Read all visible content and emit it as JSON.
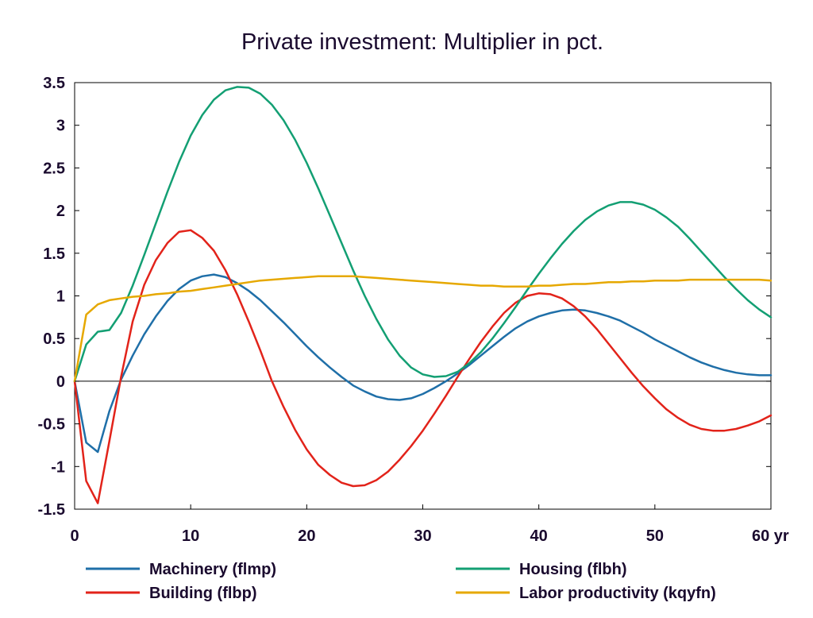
{
  "chart_data": {
    "type": "line",
    "title": "Private investment: Multiplier in pct.",
    "xlabel": "",
    "ylabel": "",
    "x_unit_label": "yr",
    "xlim": [
      0,
      60
    ],
    "ylim": [
      -1.5,
      3.5
    ],
    "x_ticks": [
      0,
      10,
      20,
      30,
      40,
      50,
      60
    ],
    "x_tick_labels": [
      "0",
      "10",
      "20",
      "30",
      "40",
      "50",
      "60 yr"
    ],
    "y_ticks": [
      3.5,
      3,
      2.5,
      2,
      1.5,
      1,
      0.5,
      0,
      -0.5,
      -1,
      -1.5
    ],
    "y_tick_labels": [
      "3.5",
      "3",
      "2.5",
      "2",
      "1.5",
      "1",
      "0.5",
      "0",
      "-0.5",
      "-1",
      "-1.5"
    ],
    "grid": false,
    "legend_position": "bottom",
    "series": [
      {
        "name": "Machinery (flmp)",
        "color": "#1f6fa8",
        "points": [
          [
            0,
            0
          ],
          [
            1,
            -0.72
          ],
          [
            2,
            -0.83
          ],
          [
            3,
            -0.35
          ],
          [
            4,
            0.02
          ],
          [
            5,
            0.3
          ],
          [
            6,
            0.55
          ],
          [
            7,
            0.76
          ],
          [
            8,
            0.94
          ],
          [
            9,
            1.08
          ],
          [
            10,
            1.18
          ],
          [
            11,
            1.23
          ],
          [
            12,
            1.25
          ],
          [
            13,
            1.22
          ],
          [
            14,
            1.15
          ],
          [
            15,
            1.06
          ],
          [
            16,
            0.95
          ],
          [
            17,
            0.82
          ],
          [
            18,
            0.69
          ],
          [
            19,
            0.55
          ],
          [
            20,
            0.41
          ],
          [
            21,
            0.28
          ],
          [
            22,
            0.16
          ],
          [
            23,
            0.05
          ],
          [
            24,
            -0.05
          ],
          [
            25,
            -0.12
          ],
          [
            26,
            -0.18
          ],
          [
            27,
            -0.21
          ],
          [
            28,
            -0.22
          ],
          [
            29,
            -0.2
          ],
          [
            30,
            -0.15
          ],
          [
            31,
            -0.08
          ],
          [
            32,
            0.0
          ],
          [
            33,
            0.09
          ],
          [
            34,
            0.19
          ],
          [
            35,
            0.3
          ],
          [
            36,
            0.41
          ],
          [
            37,
            0.52
          ],
          [
            38,
            0.62
          ],
          [
            39,
            0.7
          ],
          [
            40,
            0.76
          ],
          [
            41,
            0.8
          ],
          [
            42,
            0.83
          ],
          [
            43,
            0.84
          ],
          [
            44,
            0.83
          ],
          [
            45,
            0.8
          ],
          [
            46,
            0.76
          ],
          [
            47,
            0.71
          ],
          [
            48,
            0.64
          ],
          [
            49,
            0.57
          ],
          [
            50,
            0.49
          ],
          [
            51,
            0.42
          ],
          [
            52,
            0.35
          ],
          [
            53,
            0.28
          ],
          [
            54,
            0.22
          ],
          [
            55,
            0.17
          ],
          [
            56,
            0.13
          ],
          [
            57,
            0.1
          ],
          [
            58,
            0.08
          ],
          [
            59,
            0.07
          ],
          [
            60,
            0.07
          ]
        ]
      },
      {
        "name": "Building (flbp)",
        "color": "#e2231a",
        "points": [
          [
            0,
            0
          ],
          [
            1,
            -1.17
          ],
          [
            2,
            -1.43
          ],
          [
            3,
            -0.7
          ],
          [
            4,
            0.05
          ],
          [
            5,
            0.7
          ],
          [
            6,
            1.13
          ],
          [
            7,
            1.42
          ],
          [
            8,
            1.62
          ],
          [
            9,
            1.75
          ],
          [
            10,
            1.77
          ],
          [
            11,
            1.68
          ],
          [
            12,
            1.53
          ],
          [
            13,
            1.3
          ],
          [
            14,
            1.02
          ],
          [
            15,
            0.7
          ],
          [
            16,
            0.36
          ],
          [
            17,
            0.0
          ],
          [
            18,
            -0.3
          ],
          [
            19,
            -0.57
          ],
          [
            20,
            -0.8
          ],
          [
            21,
            -0.98
          ],
          [
            22,
            -1.1
          ],
          [
            23,
            -1.19
          ],
          [
            24,
            -1.23
          ],
          [
            25,
            -1.22
          ],
          [
            26,
            -1.16
          ],
          [
            27,
            -1.06
          ],
          [
            28,
            -0.92
          ],
          [
            29,
            -0.76
          ],
          [
            30,
            -0.58
          ],
          [
            31,
            -0.38
          ],
          [
            32,
            -0.17
          ],
          [
            33,
            0.05
          ],
          [
            34,
            0.26
          ],
          [
            35,
            0.46
          ],
          [
            36,
            0.64
          ],
          [
            37,
            0.8
          ],
          [
            38,
            0.92
          ],
          [
            39,
            1.0
          ],
          [
            40,
            1.03
          ],
          [
            41,
            1.02
          ],
          [
            42,
            0.97
          ],
          [
            43,
            0.88
          ],
          [
            44,
            0.76
          ],
          [
            45,
            0.61
          ],
          [
            46,
            0.44
          ],
          [
            47,
            0.27
          ],
          [
            48,
            0.1
          ],
          [
            49,
            -0.06
          ],
          [
            50,
            -0.2
          ],
          [
            51,
            -0.33
          ],
          [
            52,
            -0.43
          ],
          [
            53,
            -0.51
          ],
          [
            54,
            -0.56
          ],
          [
            55,
            -0.58
          ],
          [
            56,
            -0.58
          ],
          [
            57,
            -0.56
          ],
          [
            58,
            -0.52
          ],
          [
            59,
            -0.47
          ],
          [
            60,
            -0.4
          ]
        ]
      },
      {
        "name": "Housing (flbh)",
        "color": "#139f73",
        "points": [
          [
            0,
            0
          ],
          [
            1,
            0.43
          ],
          [
            2,
            0.58
          ],
          [
            3,
            0.6
          ],
          [
            4,
            0.8
          ],
          [
            5,
            1.12
          ],
          [
            6,
            1.48
          ],
          [
            7,
            1.85
          ],
          [
            8,
            2.22
          ],
          [
            9,
            2.57
          ],
          [
            10,
            2.88
          ],
          [
            11,
            3.12
          ],
          [
            12,
            3.3
          ],
          [
            13,
            3.41
          ],
          [
            14,
            3.45
          ],
          [
            15,
            3.44
          ],
          [
            16,
            3.37
          ],
          [
            17,
            3.24
          ],
          [
            18,
            3.06
          ],
          [
            19,
            2.83
          ],
          [
            20,
            2.56
          ],
          [
            21,
            2.26
          ],
          [
            22,
            1.94
          ],
          [
            23,
            1.62
          ],
          [
            24,
            1.3
          ],
          [
            25,
            1.0
          ],
          [
            26,
            0.73
          ],
          [
            27,
            0.49
          ],
          [
            28,
            0.3
          ],
          [
            29,
            0.16
          ],
          [
            30,
            0.08
          ],
          [
            31,
            0.05
          ],
          [
            32,
            0.06
          ],
          [
            33,
            0.11
          ],
          [
            34,
            0.21
          ],
          [
            35,
            0.34
          ],
          [
            36,
            0.5
          ],
          [
            37,
            0.68
          ],
          [
            38,
            0.87
          ],
          [
            39,
            1.07
          ],
          [
            40,
            1.26
          ],
          [
            41,
            1.44
          ],
          [
            42,
            1.61
          ],
          [
            43,
            1.76
          ],
          [
            44,
            1.89
          ],
          [
            45,
            1.99
          ],
          [
            46,
            2.06
          ],
          [
            47,
            2.1
          ],
          [
            48,
            2.1
          ],
          [
            49,
            2.07
          ],
          [
            50,
            2.01
          ],
          [
            51,
            1.92
          ],
          [
            52,
            1.81
          ],
          [
            53,
            1.67
          ],
          [
            54,
            1.52
          ],
          [
            55,
            1.37
          ],
          [
            56,
            1.22
          ],
          [
            57,
            1.08
          ],
          [
            58,
            0.95
          ],
          [
            59,
            0.84
          ],
          [
            60,
            0.75
          ]
        ]
      },
      {
        "name": "Labor productivity (kqyfn)",
        "color": "#e6a800",
        "points": [
          [
            0,
            0
          ],
          [
            1,
            0.78
          ],
          [
            2,
            0.9
          ],
          [
            3,
            0.95
          ],
          [
            4,
            0.97
          ],
          [
            5,
            0.99
          ],
          [
            6,
            1.0
          ],
          [
            7,
            1.02
          ],
          [
            8,
            1.03
          ],
          [
            9,
            1.05
          ],
          [
            10,
            1.06
          ],
          [
            11,
            1.08
          ],
          [
            12,
            1.1
          ],
          [
            13,
            1.12
          ],
          [
            14,
            1.14
          ],
          [
            15,
            1.16
          ],
          [
            16,
            1.18
          ],
          [
            17,
            1.19
          ],
          [
            18,
            1.2
          ],
          [
            19,
            1.21
          ],
          [
            20,
            1.22
          ],
          [
            21,
            1.23
          ],
          [
            22,
            1.23
          ],
          [
            23,
            1.23
          ],
          [
            24,
            1.23
          ],
          [
            25,
            1.22
          ],
          [
            26,
            1.21
          ],
          [
            27,
            1.2
          ],
          [
            28,
            1.19
          ],
          [
            29,
            1.18
          ],
          [
            30,
            1.17
          ],
          [
            31,
            1.16
          ],
          [
            32,
            1.15
          ],
          [
            33,
            1.14
          ],
          [
            34,
            1.13
          ],
          [
            35,
            1.12
          ],
          [
            36,
            1.12
          ],
          [
            37,
            1.11
          ],
          [
            38,
            1.11
          ],
          [
            39,
            1.11
          ],
          [
            40,
            1.12
          ],
          [
            41,
            1.12
          ],
          [
            42,
            1.13
          ],
          [
            43,
            1.14
          ],
          [
            44,
            1.14
          ],
          [
            45,
            1.15
          ],
          [
            46,
            1.16
          ],
          [
            47,
            1.16
          ],
          [
            48,
            1.17
          ],
          [
            49,
            1.17
          ],
          [
            50,
            1.18
          ],
          [
            51,
            1.18
          ],
          [
            52,
            1.18
          ],
          [
            53,
            1.19
          ],
          [
            54,
            1.19
          ],
          [
            55,
            1.19
          ],
          [
            56,
            1.19
          ],
          [
            57,
            1.19
          ],
          [
            58,
            1.19
          ],
          [
            59,
            1.19
          ],
          [
            60,
            1.18
          ]
        ]
      }
    ]
  }
}
